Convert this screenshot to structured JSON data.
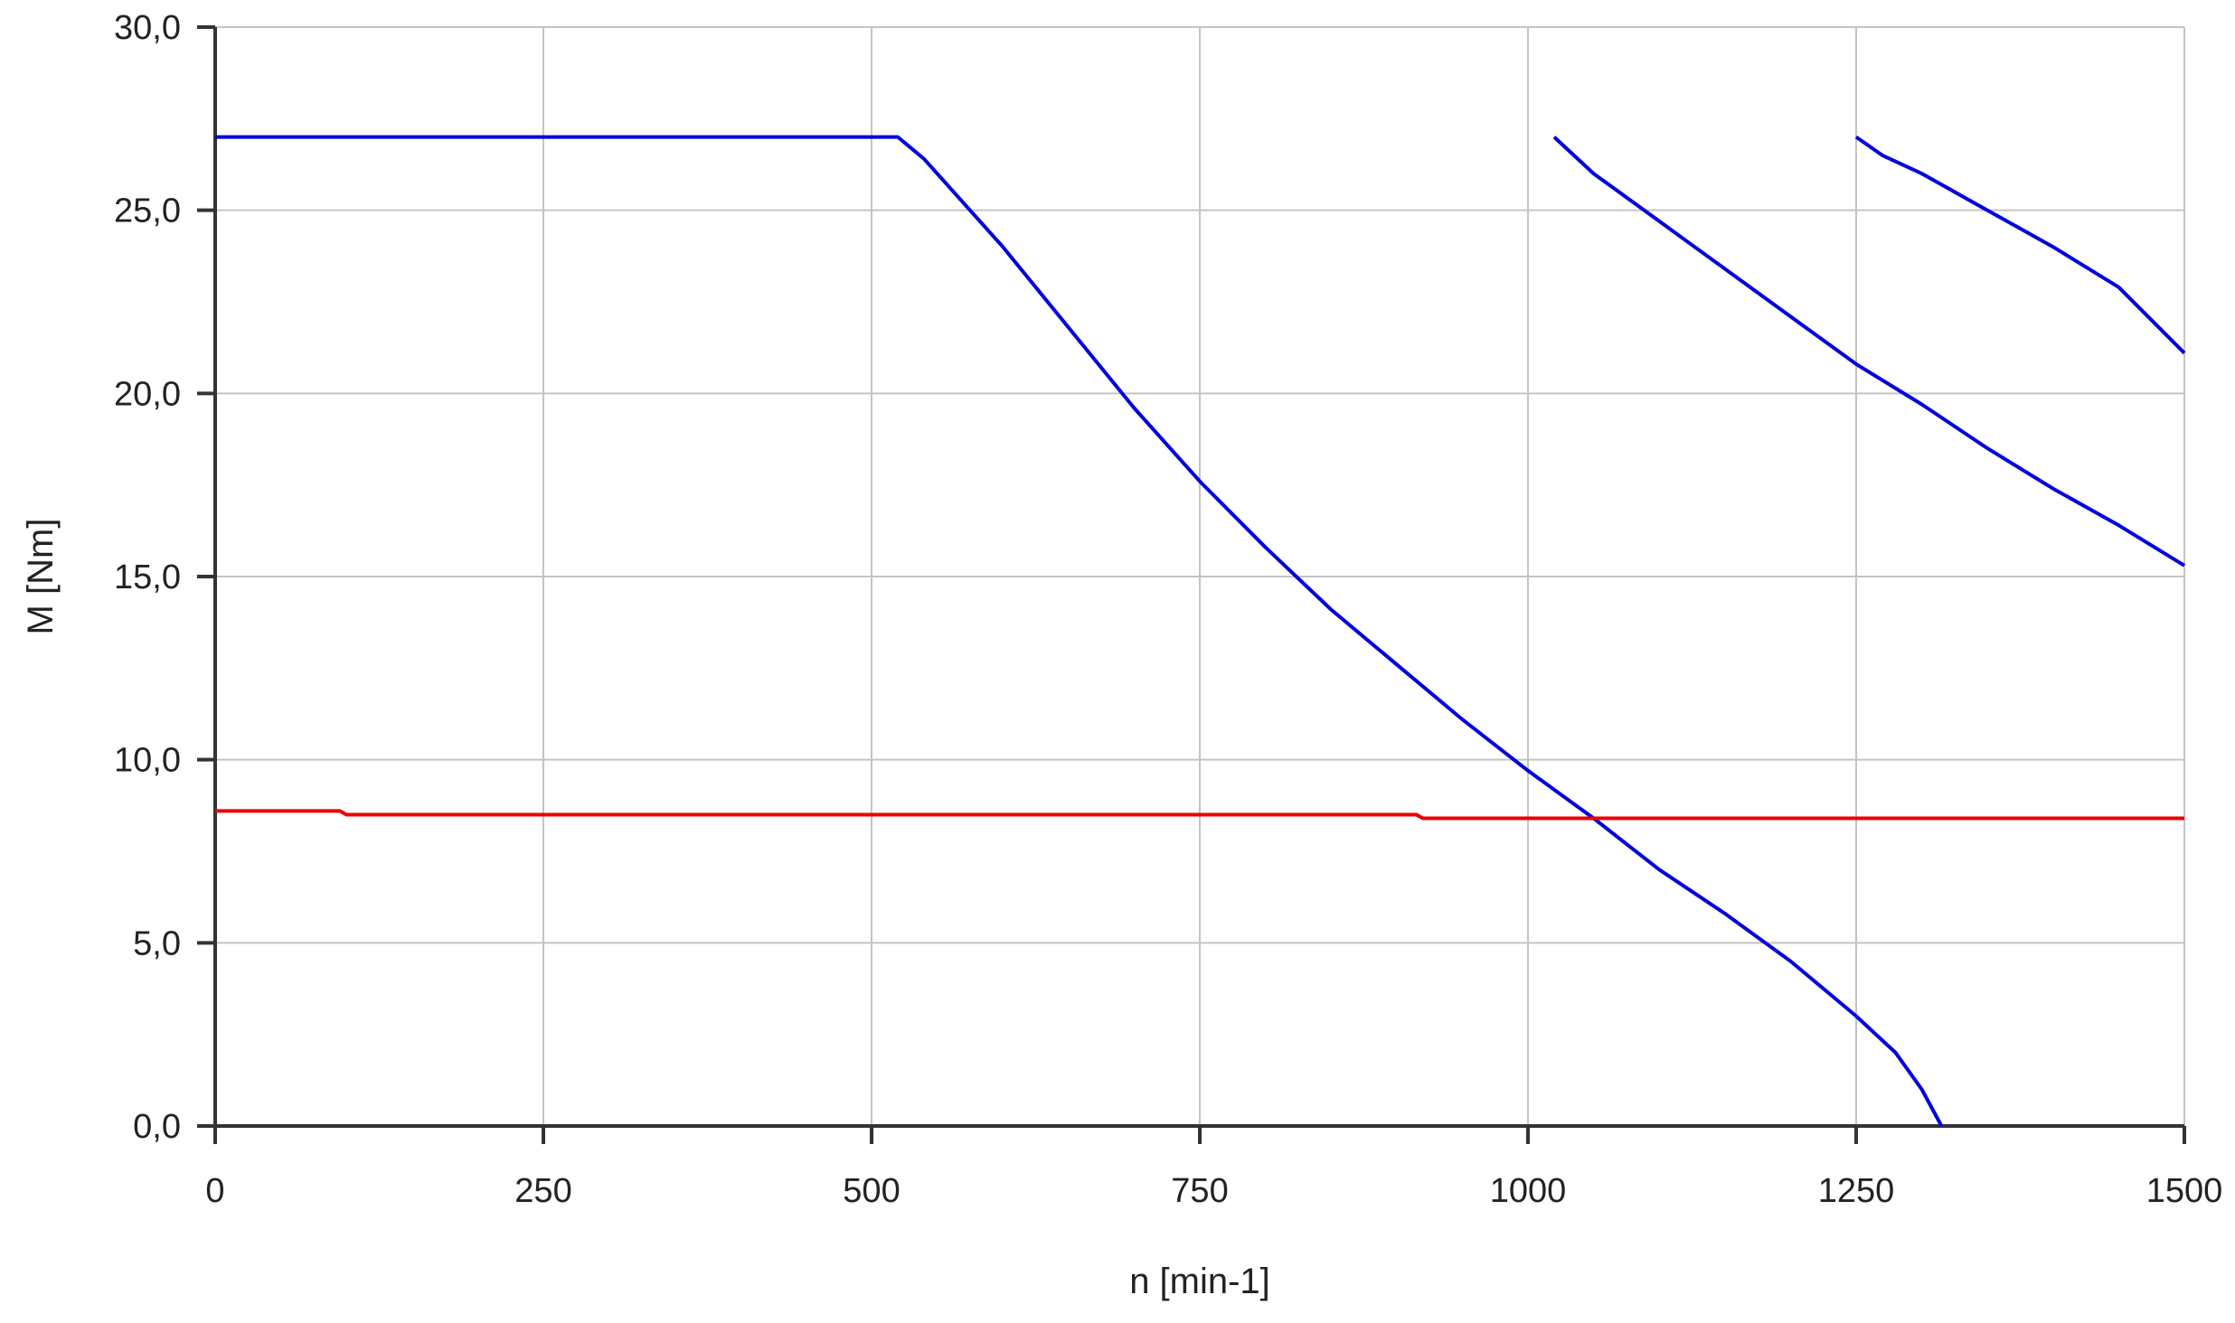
{
  "chart_data": {
    "type": "line",
    "title": "",
    "xlabel": "n [min-1]",
    "ylabel": "M [Nm]",
    "xlim": [
      0,
      1500
    ],
    "ylim": [
      0,
      30
    ],
    "grid": true,
    "x_ticks": [
      0,
      250,
      500,
      750,
      1000,
      1250,
      1500
    ],
    "x_tick_labels": [
      "0",
      "250",
      "500",
      "750",
      "1000",
      "1250",
      "1500"
    ],
    "y_ticks": [
      0,
      5,
      10,
      15,
      20,
      25,
      30
    ],
    "y_tick_labels": [
      "0,0",
      "5,0",
      "10,0",
      "15,0",
      "20,0",
      "25,0",
      "30,0"
    ],
    "series": [
      {
        "color": "#0000dd",
        "points": [
          [
            0,
            27.0
          ],
          [
            520,
            27.0
          ],
          [
            540,
            26.4
          ],
          [
            600,
            24.0
          ],
          [
            650,
            21.8
          ],
          [
            700,
            19.6
          ],
          [
            750,
            17.6
          ],
          [
            800,
            15.8
          ],
          [
            850,
            14.1
          ],
          [
            900,
            12.6
          ],
          [
            950,
            11.1
          ],
          [
            1000,
            9.7
          ],
          [
            1050,
            8.4
          ],
          [
            1100,
            7.0
          ],
          [
            1150,
            5.8
          ],
          [
            1200,
            4.5
          ],
          [
            1250,
            3.0
          ],
          [
            1280,
            2.0
          ],
          [
            1300,
            1.0
          ],
          [
            1315,
            0.0
          ]
        ]
      },
      {
        "color": "#0000dd",
        "points": [
          [
            1020,
            27.0
          ],
          [
            1050,
            26.0
          ],
          [
            1100,
            24.7
          ],
          [
            1150,
            23.4
          ],
          [
            1200,
            22.1
          ],
          [
            1250,
            20.8
          ],
          [
            1300,
            19.7
          ],
          [
            1350,
            18.5
          ],
          [
            1400,
            17.4
          ],
          [
            1450,
            16.4
          ],
          [
            1500,
            15.3
          ]
        ]
      },
      {
        "color": "#0000dd",
        "points": [
          [
            1250,
            27.0
          ],
          [
            1270,
            26.5
          ],
          [
            1300,
            26.0
          ],
          [
            1350,
            25.0
          ],
          [
            1400,
            24.0
          ],
          [
            1450,
            22.9
          ],
          [
            1500,
            21.1
          ]
        ]
      },
      {
        "color": "#ee0000",
        "points": [
          [
            0,
            8.6
          ],
          [
            95,
            8.6
          ],
          [
            100,
            8.5
          ],
          [
            915,
            8.5
          ],
          [
            920,
            8.4
          ],
          [
            1500,
            8.4
          ]
        ]
      }
    ]
  }
}
